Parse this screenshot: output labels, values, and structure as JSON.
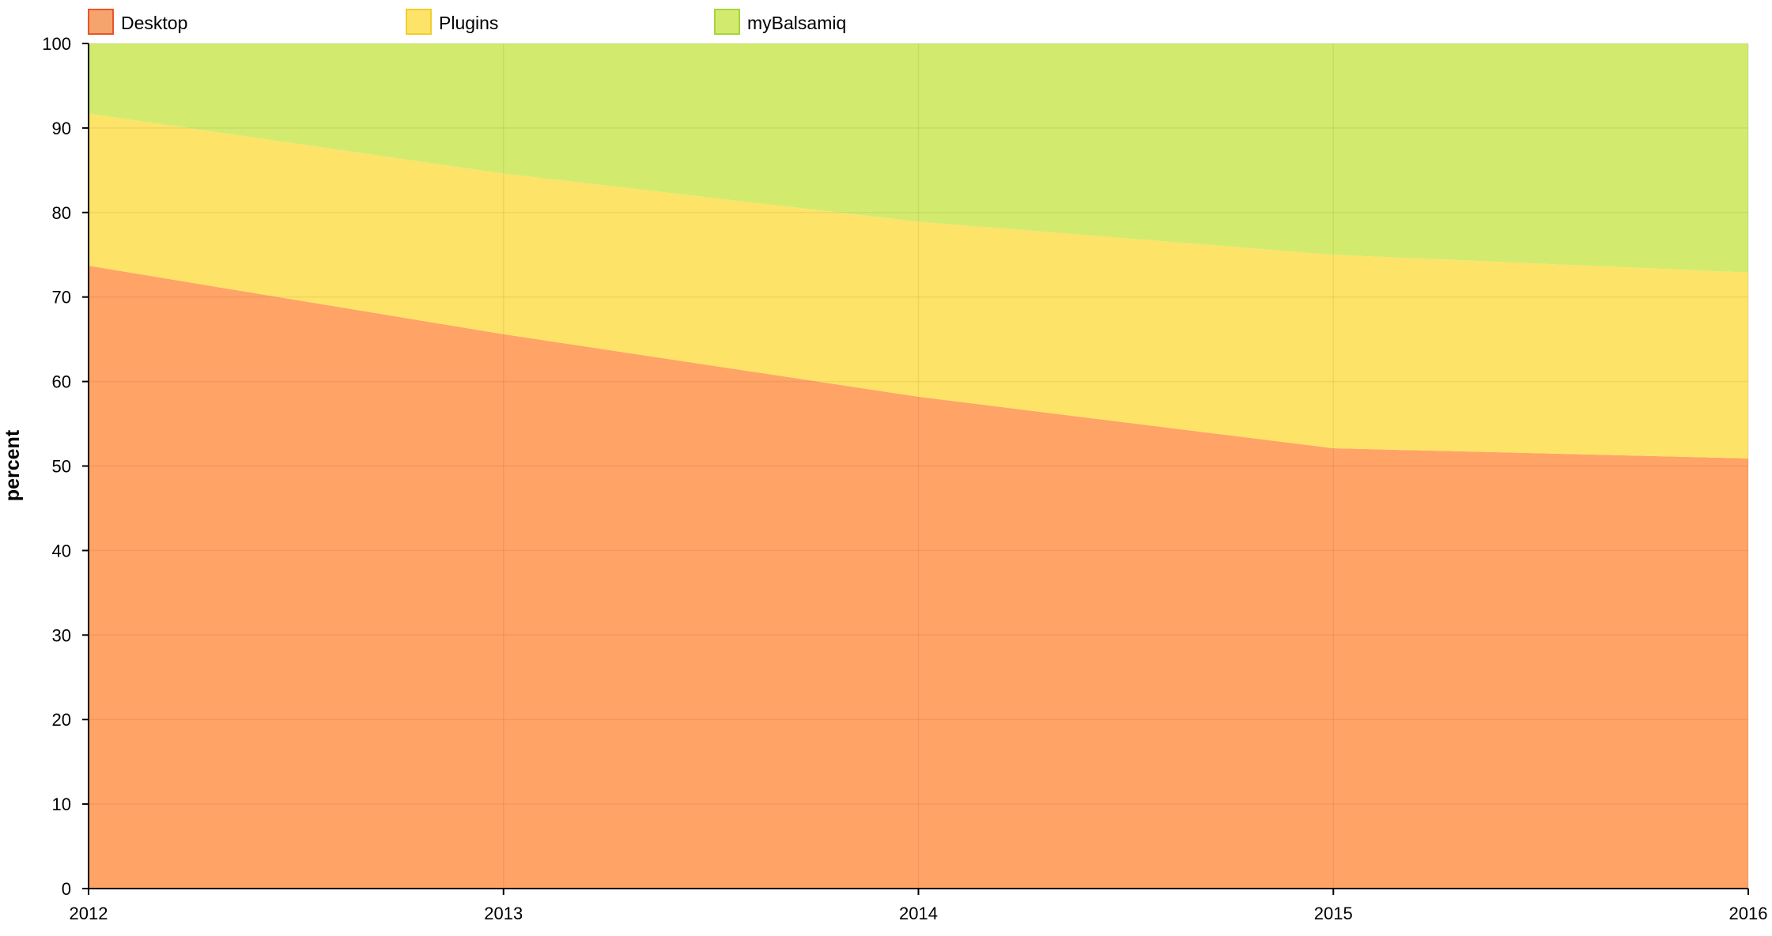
{
  "chart_data": {
    "type": "area",
    "stacked": true,
    "x": [
      "2012",
      "2013",
      "2014",
      "2015",
      "2016"
    ],
    "series": [
      {
        "name": "Desktop",
        "values": [
          73.7,
          65.6,
          58.2,
          52.1,
          50.9
        ],
        "fill": "#FFA366",
        "swatch_fill": "#F4A46C",
        "swatch_stroke": "#E8552A"
      },
      {
        "name": "Plugins",
        "values": [
          18.0,
          19.0,
          20.7,
          22.9,
          22.0
        ],
        "fill": "#FDE368",
        "swatch_fill": "#FDE368",
        "swatch_stroke": "#F2CC2A"
      },
      {
        "name": "myBalsamiq",
        "values": [
          8.3,
          15.4,
          21.1,
          25.0,
          27.1
        ],
        "fill": "#D2EB6E",
        "swatch_fill": "#D2EB6E",
        "swatch_stroke": "#A8D43C"
      }
    ],
    "ylabel": "percent",
    "xlabel": "",
    "ylim": [
      0,
      100
    ],
    "yticks": [
      "0",
      "10",
      "20",
      "30",
      "40",
      "50",
      "60",
      "70",
      "80",
      "90",
      "100"
    ],
    "grid": true,
    "legend_position": "top"
  }
}
